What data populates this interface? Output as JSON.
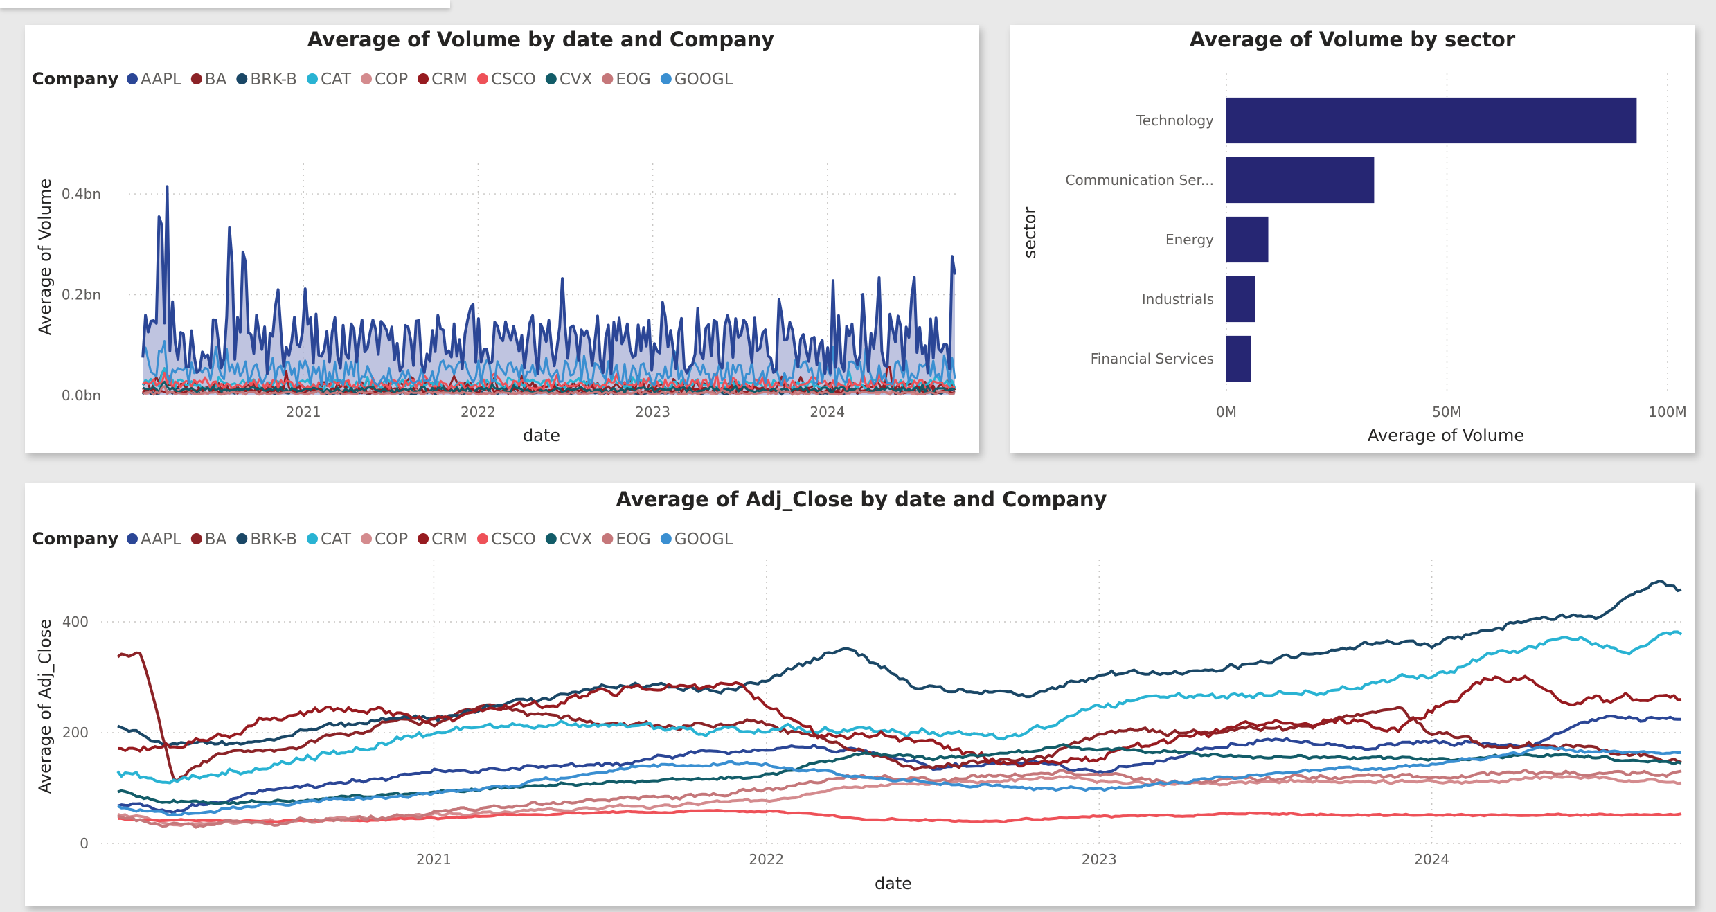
{
  "companies": [
    {
      "name": "AAPL",
      "color": "#2b4696"
    },
    {
      "name": "BA",
      "color": "#8c2327"
    },
    {
      "name": "BRK-B",
      "color": "#1a4766"
    },
    {
      "name": "CAT",
      "color": "#29b3d3"
    },
    {
      "name": "COP",
      "color": "#d48b8e"
    },
    {
      "name": "CRM",
      "color": "#971b20"
    },
    {
      "name": "CSCO",
      "color": "#ee5158"
    },
    {
      "name": "CVX",
      "color": "#125c68"
    },
    {
      "name": "EOG",
      "color": "#c5777a"
    },
    {
      "name": "GOOGL",
      "color": "#3a8fd1"
    }
  ],
  "legend_title": "Company",
  "chart_data": [
    {
      "id": "volume-by-date",
      "type": "line",
      "title": "Average of Volume by date and Company",
      "xlabel": "date",
      "ylabel": "Average of Volume",
      "x_ticks": [
        "2021",
        "2022",
        "2023",
        "2024"
      ],
      "x_tick_years": [
        2021,
        2022,
        2023,
        2024
      ],
      "xlim": [
        2020.0,
        2024.75
      ],
      "y_ticks": [
        "0.0bn",
        "0.2bn",
        "0.4bn"
      ],
      "y_tick_values": [
        0,
        0.2,
        0.4
      ],
      "ylim": [
        0,
        0.44
      ],
      "unit": "bn",
      "area_fill": "#aab0d6",
      "series": [
        {
          "name": "AAPL",
          "peaks": [
            [
              2020.18,
              0.43
            ],
            [
              2020.22,
              0.42
            ],
            [
              2020.06,
              0.22
            ],
            [
              2020.58,
              0.37
            ],
            [
              2020.66,
              0.34
            ],
            [
              2020.85,
              0.24
            ],
            [
              2021.07,
              0.17
            ],
            [
              2021.95,
              0.2
            ],
            [
              2022.2,
              0.15
            ],
            [
              2022.55,
              0.16
            ],
            [
              2022.85,
              0.16
            ],
            [
              2023.5,
              0.14
            ],
            [
              2023.8,
              0.13
            ],
            [
              2024.5,
              0.25
            ],
            [
              2024.72,
              0.32
            ]
          ],
          "base": 0.09,
          "noise": 0.06
        },
        {
          "name": "BA",
          "peaks": [
            [
              2020.2,
              0.06
            ]
          ],
          "base": 0.015,
          "noise": 0.01
        },
        {
          "name": "BRK-B",
          "peaks": [
            [
              2020.2,
              0.02
            ]
          ],
          "base": 0.005,
          "noise": 0.004
        },
        {
          "name": "CAT",
          "peaks": [
            [
              2020.2,
              0.06
            ]
          ],
          "base": 0.02,
          "noise": 0.01
        },
        {
          "name": "COP",
          "peaks": [
            [
              2020.2,
              0.02
            ]
          ],
          "base": 0.006,
          "noise": 0.004
        },
        {
          "name": "CRM",
          "peaks": [
            [
              2020.9,
              0.05
            ],
            [
              2024.35,
              0.07
            ]
          ],
          "base": 0.008,
          "noise": 0.006
        },
        {
          "name": "CSCO",
          "peaks": [
            [
              2022.1,
              0.05
            ],
            [
              2024.2,
              0.05
            ]
          ],
          "base": 0.02,
          "noise": 0.01
        },
        {
          "name": "CVX",
          "peaks": [
            [
              2020.2,
              0.03
            ]
          ],
          "base": 0.01,
          "noise": 0.005
        },
        {
          "name": "EOG",
          "peaks": [
            [
              2020.2,
              0.02
            ]
          ],
          "base": 0.004,
          "noise": 0.003
        },
        {
          "name": "GOOGL",
          "peaks": [
            [
              2020.2,
              0.12
            ],
            [
              2020.5,
              0.1
            ]
          ],
          "base": 0.04,
          "noise": 0.025
        }
      ]
    },
    {
      "id": "volume-by-sector",
      "type": "bar",
      "orientation": "horizontal",
      "title": "Average of Volume by sector",
      "xlabel": "Average of Volume",
      "ylabel": "sector",
      "categories": [
        "Technology",
        "Communication Ser...",
        "Energy",
        "Industrials",
        "Financial Services"
      ],
      "values": [
        93,
        33.5,
        9.5,
        6.5,
        5.5
      ],
      "unit": "M",
      "x_ticks": [
        "0M",
        "50M",
        "100M"
      ],
      "x_tick_values": [
        0,
        50,
        100
      ],
      "xlim": [
        0,
        100
      ],
      "bar_color": "#262673"
    },
    {
      "id": "adj-close-by-date",
      "type": "line",
      "title": "Average of Adj_Close by date and Company",
      "xlabel": "date",
      "ylabel": "Average of Adj_Close",
      "x_ticks": [
        "2021",
        "2022",
        "2023",
        "2024"
      ],
      "x_tick_years": [
        2021,
        2022,
        2023,
        2024
      ],
      "xlim": [
        2020.0,
        2024.75
      ],
      "y_ticks": [
        "0",
        "200",
        "400"
      ],
      "y_tick_values": [
        0,
        200,
        400
      ],
      "ylim": [
        0,
        500
      ],
      "series": [
        {
          "name": "AAPL",
          "points": [
            [
              2020.0,
              75
            ],
            [
              2020.2,
              60
            ],
            [
              2020.5,
              95
            ],
            [
              2020.75,
              115
            ],
            [
              2021.0,
              130
            ],
            [
              2021.5,
              140
            ],
            [
              2021.98,
              175
            ],
            [
              2022.3,
              165
            ],
            [
              2022.5,
              140
            ],
            [
              2022.8,
              145
            ],
            [
              2023.0,
              130
            ],
            [
              2023.5,
              190
            ],
            [
              2023.8,
              175
            ],
            [
              2024.0,
              185
            ],
            [
              2024.3,
              175
            ],
            [
              2024.5,
              225
            ],
            [
              2024.72,
              228
            ]
          ],
          "noise": 4
        },
        {
          "name": "BA",
          "points": [
            [
              2020.0,
              335
            ],
            [
              2020.12,
              345
            ],
            [
              2020.22,
              115
            ],
            [
              2020.35,
              160
            ],
            [
              2020.6,
              175
            ],
            [
              2020.85,
              220
            ],
            [
              2021.0,
              215
            ],
            [
              2021.15,
              250
            ],
            [
              2021.35,
              230
            ],
            [
              2021.7,
              210
            ],
            [
              2021.95,
              220
            ],
            [
              2022.15,
              190
            ],
            [
              2022.45,
              140
            ],
            [
              2022.8,
              150
            ],
            [
              2023.05,
              205
            ],
            [
              2023.3,
              200
            ],
            [
              2023.6,
              210
            ],
            [
              2023.9,
              245
            ],
            [
              2024.0,
              200
            ],
            [
              2024.25,
              175
            ],
            [
              2024.45,
              180
            ],
            [
              2024.72,
              152
            ]
          ],
          "noise": 5
        },
        {
          "name": "BRK-B",
          "points": [
            [
              2020.0,
              225
            ],
            [
              2020.2,
              175
            ],
            [
              2020.4,
              185
            ],
            [
              2020.75,
              215
            ],
            [
              2021.0,
              230
            ],
            [
              2021.3,
              260
            ],
            [
              2021.5,
              285
            ],
            [
              2021.9,
              280
            ],
            [
              2022.25,
              355
            ],
            [
              2022.45,
              275
            ],
            [
              2022.8,
              270
            ],
            [
              2023.0,
              305
            ],
            [
              2023.3,
              310
            ],
            [
              2023.6,
              340
            ],
            [
              2023.8,
              360
            ],
            [
              2024.0,
              360
            ],
            [
              2024.25,
              400
            ],
            [
              2024.5,
              410
            ],
            [
              2024.68,
              470
            ],
            [
              2024.72,
              455
            ]
          ],
          "noise": 5
        },
        {
          "name": "CAT",
          "points": [
            [
              2020.0,
              135
            ],
            [
              2020.2,
              110
            ],
            [
              2020.45,
              135
            ],
            [
              2020.8,
              170
            ],
            [
              2021.0,
              200
            ],
            [
              2021.3,
              215
            ],
            [
              2021.7,
              200
            ],
            [
              2021.98,
              205
            ],
            [
              2022.4,
              205
            ],
            [
              2022.75,
              190
            ],
            [
              2022.9,
              225
            ],
            [
              2023.1,
              260
            ],
            [
              2023.4,
              270
            ],
            [
              2023.6,
              270
            ],
            [
              2023.8,
              285
            ],
            [
              2024.0,
              300
            ],
            [
              2024.2,
              345
            ],
            [
              2024.45,
              370
            ],
            [
              2024.6,
              345
            ],
            [
              2024.72,
              385
            ]
          ],
          "noise": 6
        },
        {
          "name": "COP",
          "points": [
            [
              2020.0,
              60
            ],
            [
              2020.2,
              35
            ],
            [
              2020.6,
              40
            ],
            [
              2021.0,
              50
            ],
            [
              2021.5,
              65
            ],
            [
              2021.98,
              75
            ],
            [
              2022.3,
              105
            ],
            [
              2022.6,
              110
            ],
            [
              2022.9,
              120
            ],
            [
              2023.2,
              105
            ],
            [
              2023.6,
              115
            ],
            [
              2024.0,
              110
            ],
            [
              2024.4,
              120
            ],
            [
              2024.72,
              108
            ]
          ],
          "noise": 3
        },
        {
          "name": "CRM",
          "points": [
            [
              2020.0,
              170
            ],
            [
              2020.2,
              175
            ],
            [
              2020.5,
              220
            ],
            [
              2020.85,
              250
            ],
            [
              2021.0,
              225
            ],
            [
              2021.35,
              250
            ],
            [
              2021.6,
              280
            ],
            [
              2021.9,
              290
            ],
            [
              2022.15,
              200
            ],
            [
              2022.45,
              180
            ],
            [
              2022.8,
              140
            ],
            [
              2023.0,
              155
            ],
            [
              2023.4,
              205
            ],
            [
              2023.7,
              225
            ],
            [
              2023.9,
              210
            ],
            [
              2024.05,
              260
            ],
            [
              2024.2,
              310
            ],
            [
              2024.45,
              255
            ],
            [
              2024.72,
              270
            ]
          ],
          "noise": 7
        },
        {
          "name": "CSCO",
          "points": [
            [
              2020.0,
              45
            ],
            [
              2020.5,
              40
            ],
            [
              2021.0,
              45
            ],
            [
              2021.5,
              55
            ],
            [
              2021.98,
              60
            ],
            [
              2022.3,
              45
            ],
            [
              2022.6,
              40
            ],
            [
              2023.0,
              47
            ],
            [
              2023.5,
              55
            ],
            [
              2024.0,
              50
            ],
            [
              2024.72,
              52
            ]
          ],
          "noise": 1.5
        },
        {
          "name": "CVX",
          "points": [
            [
              2020.0,
              100
            ],
            [
              2020.2,
              75
            ],
            [
              2020.6,
              75
            ],
            [
              2021.0,
              95
            ],
            [
              2021.5,
              110
            ],
            [
              2021.98,
              120
            ],
            [
              2022.3,
              160
            ],
            [
              2022.5,
              150
            ],
            [
              2022.9,
              175
            ],
            [
              2023.2,
              165
            ],
            [
              2023.6,
              155
            ],
            [
              2024.0,
              150
            ],
            [
              2024.4,
              160
            ],
            [
              2024.72,
              145
            ]
          ],
          "noise": 3
        },
        {
          "name": "EOG",
          "points": [
            [
              2020.0,
              55
            ],
            [
              2020.2,
              30
            ],
            [
              2020.6,
              40
            ],
            [
              2021.0,
              55
            ],
            [
              2021.5,
              80
            ],
            [
              2021.98,
              95
            ],
            [
              2022.3,
              120
            ],
            [
              2022.6,
              115
            ],
            [
              2022.9,
              130
            ],
            [
              2023.2,
              110
            ],
            [
              2023.6,
              120
            ],
            [
              2024.0,
              125
            ],
            [
              2024.4,
              130
            ],
            [
              2024.72,
              125
            ]
          ],
          "noise": 4
        },
        {
          "name": "GOOGL",
          "points": [
            [
              2020.0,
              70
            ],
            [
              2020.2,
              55
            ],
            [
              2020.5,
              70
            ],
            [
              2020.75,
              80
            ],
            [
              2021.0,
              90
            ],
            [
              2021.3,
              110
            ],
            [
              2021.6,
              140
            ],
            [
              2021.95,
              145
            ],
            [
              2022.4,
              115
            ],
            [
              2022.75,
              100
            ],
            [
              2023.0,
              95
            ],
            [
              2023.4,
              120
            ],
            [
              2023.7,
              135
            ],
            [
              2024.0,
              140
            ],
            [
              2024.35,
              170
            ],
            [
              2024.72,
              162
            ]
          ],
          "noise": 3
        }
      ]
    }
  ]
}
